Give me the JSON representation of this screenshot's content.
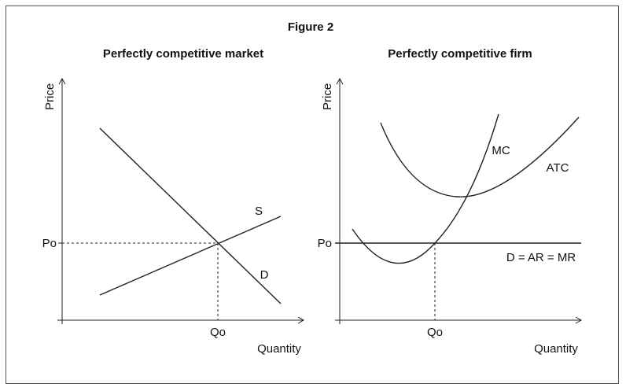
{
  "figure_title": "Figure 2",
  "market": {
    "title": "Perfectly competitive market",
    "y_axis_label": "Price",
    "x_axis_label": "Quantity",
    "price_label": "Po",
    "quantity_label": "Qo",
    "supply_label": "S",
    "demand_label": "D"
  },
  "firm": {
    "title": "Perfectly competitive firm",
    "y_axis_label": "Price",
    "x_axis_label": "Quantity",
    "price_label": "Po",
    "quantity_label": "Qo",
    "mc_label": "MC",
    "atc_label": "ATC",
    "demand_label": "D = AR = MR"
  }
}
